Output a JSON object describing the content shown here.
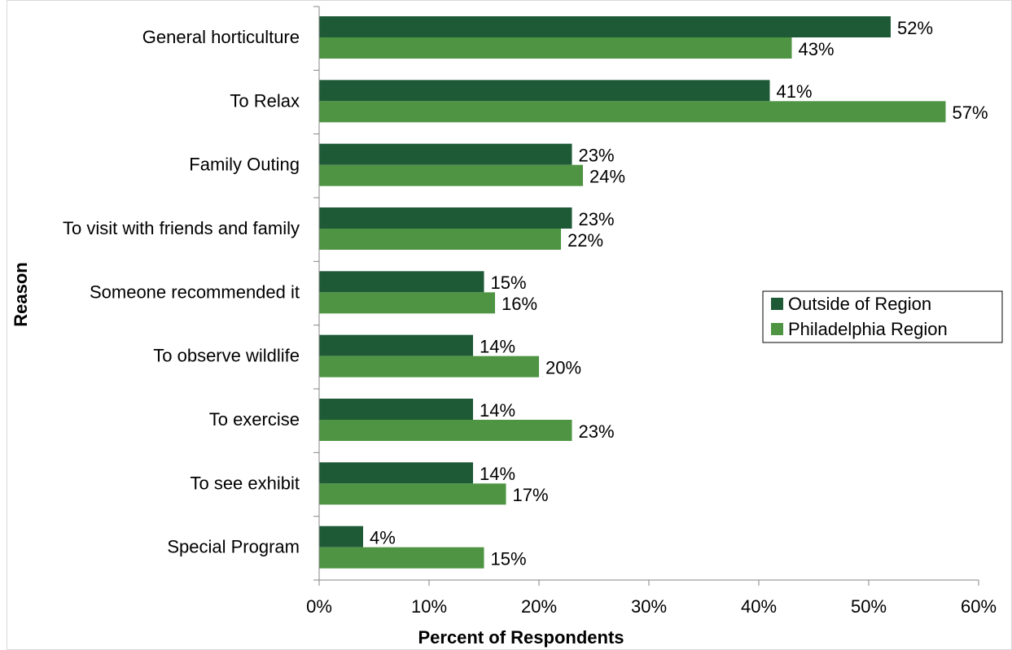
{
  "chart_data": {
    "type": "bar",
    "orientation": "horizontal",
    "xlabel": "Percent of Respondents",
    "ylabel": "Reason",
    "categories": [
      "General horticulture",
      "To Relax",
      "Family Outing",
      "To visit with friends and family",
      "Someone recommended it",
      "To observe wildlife",
      "To exercise",
      "To see exhibit",
      "Special Program"
    ],
    "series": [
      {
        "name": "Outside of Region",
        "color": "#1f5a37",
        "values": [
          52,
          41,
          23,
          23,
          15,
          14,
          14,
          14,
          4
        ],
        "value_labels": [
          "52%",
          "41%",
          "23%",
          "23%",
          "15%",
          "14%",
          "14%",
          "14%",
          "4%"
        ]
      },
      {
        "name": "Philadelphia Region",
        "color": "#4e9443",
        "values": [
          43,
          57,
          24,
          22,
          16,
          20,
          23,
          17,
          15
        ],
        "value_labels": [
          "43%",
          "57%",
          "24%",
          "22%",
          "16%",
          "20%",
          "23%",
          "17%",
          "15%"
        ]
      }
    ],
    "xlim": [
      0,
      60
    ],
    "xticks": [
      {
        "value": 0,
        "label": "0%"
      },
      {
        "value": 10,
        "label": "10%"
      },
      {
        "value": 20,
        "label": "20%"
      },
      {
        "value": 30,
        "label": "30%"
      },
      {
        "value": 40,
        "label": "40%"
      },
      {
        "value": 50,
        "label": "50%"
      },
      {
        "value": 60,
        "label": "60%"
      }
    ],
    "legend": "right"
  }
}
